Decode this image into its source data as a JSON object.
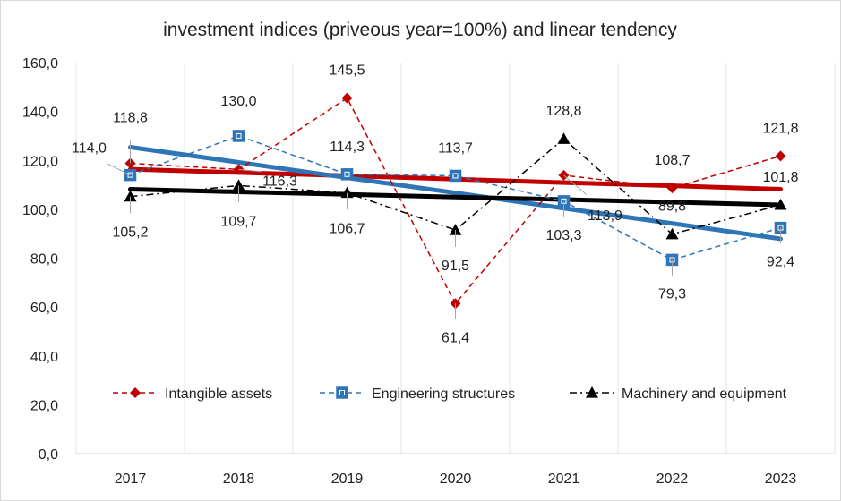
{
  "chart_data": {
    "type": "line",
    "title": "investment indices (priveous year=100%) and linear tendency",
    "xlabel": "",
    "ylabel": "",
    "ylim": [
      0,
      160
    ],
    "ytick_labels": [
      "0,0",
      "20,0",
      "40,0",
      "60,0",
      "80,0",
      "100,0",
      "120,0",
      "140,0",
      "160,0"
    ],
    "categories": [
      "2017",
      "2018",
      "2019",
      "2020",
      "2021",
      "2022",
      "2023"
    ],
    "series": [
      {
        "name": "Intangible assets",
        "color": "#c00000",
        "marker": "diamond",
        "dash": "dashed",
        "values": [
          118.8,
          116.3,
          145.5,
          61.4,
          113.9,
          108.7,
          121.8
        ],
        "labels": [
          "118,8",
          "116,3",
          "145,5",
          "61,4",
          "113,9",
          "108,7",
          "121,8"
        ],
        "trend": [
          116.4,
          115.0,
          113.7,
          112.3,
          110.9,
          109.6,
          108.2
        ]
      },
      {
        "name": "Engineering structures",
        "color": "#2e75b6",
        "marker": "square",
        "dash": "dashed",
        "values": [
          114.0,
          130.0,
          114.3,
          113.7,
          103.3,
          79.3,
          92.4
        ],
        "labels": [
          "114,0",
          "130,0",
          "114,3",
          "113,7",
          "103,3",
          "79,3",
          "92,4"
        ],
        "trend": [
          125.4,
          119.2,
          112.9,
          106.7,
          100.4,
          94.2,
          87.9
        ]
      },
      {
        "name": "Machinery and equipment",
        "color": "#000000",
        "marker": "triangle",
        "dash": "dashdot",
        "values": [
          105.2,
          109.7,
          106.7,
          91.5,
          128.8,
          89.8,
          101.8
        ],
        "labels": [
          "105,2",
          "109,7",
          "106,7",
          "91,5",
          "128,8",
          "89,8",
          "101,8"
        ],
        "trend": [
          108.2,
          107.1,
          106.1,
          105.0,
          104.0,
          102.9,
          101.8
        ]
      }
    ],
    "grid": "vertical",
    "legend": "bottom-right"
  }
}
